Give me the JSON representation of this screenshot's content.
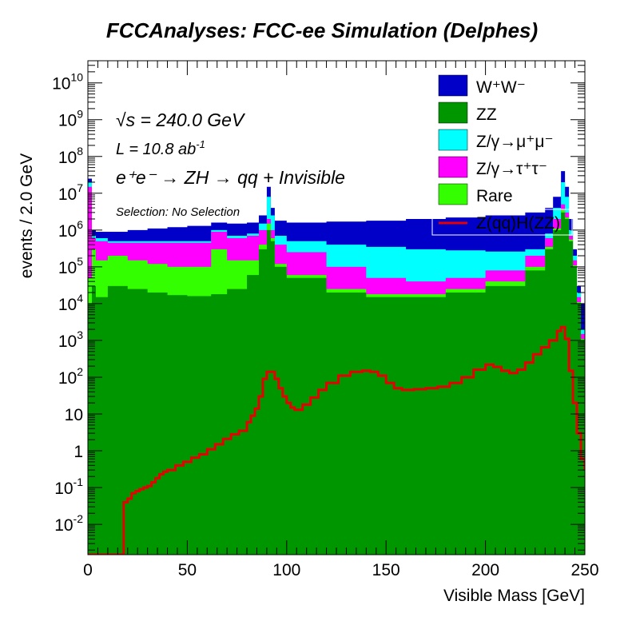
{
  "chart_data": {
    "type": "area",
    "title": "FCCAnalyses: FCC-ee Simulation (Delphes)",
    "xlabel": "Visible Mass [GeV]",
    "ylabel": "events / 2.0 GeV",
    "xlim": [
      0,
      250
    ],
    "ylim": [
      0.0015,
      40000000000
    ],
    "yscale": "log",
    "grid": false,
    "legend_position": "top-right",
    "annotations": {
      "sqrt_s": "√s = 240.0 GeV",
      "lumi": "L = 10.8 ab",
      "lumi_sup": "-1",
      "process": "e⁺e⁻ → ZH → qq + Invisible",
      "selection": "Selection: No Selection"
    },
    "x_ticks": [
      "0",
      "50",
      "100",
      "150",
      "200",
      "250"
    ],
    "y_ticks": [
      {
        "value": 0.01,
        "base": "10",
        "exp": "-2"
      },
      {
        "value": 0.1,
        "base": "10",
        "exp": "-1"
      },
      {
        "value": 1,
        "base": "1",
        "exp": ""
      },
      {
        "value": 10,
        "base": "10",
        "exp": ""
      },
      {
        "value": 100,
        "base": "10",
        "exp": "2"
      },
      {
        "value": 1000,
        "base": "10",
        "exp": "3"
      },
      {
        "value": 10000,
        "base": "10",
        "exp": "4"
      },
      {
        "value": 100000,
        "base": "10",
        "exp": "5"
      },
      {
        "value": 1000000,
        "base": "10",
        "exp": "6"
      },
      {
        "value": 10000000,
        "base": "10",
        "exp": "7"
      },
      {
        "value": 100000000,
        "base": "10",
        "exp": "8"
      },
      {
        "value": 1000000000,
        "base": "10",
        "exp": "9"
      },
      {
        "value": 10000000000,
        "base": "10",
        "exp": "10"
      }
    ],
    "legend": [
      {
        "label": "W⁺W⁻",
        "color": "#0000c8",
        "style": "box"
      },
      {
        "label": "ZZ",
        "color": "#009600",
        "style": "box"
      },
      {
        "label": "Z/γ→μ⁺μ⁻",
        "color": "#00ffff",
        "style": "box"
      },
      {
        "label": "Z/γ→τ⁺τ⁻",
        "color": "#ff00ff",
        "style": "box"
      },
      {
        "label": "Rare",
        "color": "#33ff00",
        "style": "box"
      },
      {
        "label": "Z(qq)H(ZZ)",
        "color": "#e60000",
        "style": "line"
      }
    ],
    "stacked_totals_x": [
      0,
      2,
      4,
      10,
      20,
      30,
      40,
      50,
      60,
      62,
      70,
      80,
      86,
      90,
      92,
      94,
      100,
      120,
      140,
      160,
      180,
      200,
      220,
      230,
      234,
      238,
      240,
      242,
      244,
      246,
      248,
      250
    ],
    "series": [
      {
        "name": "ZZ",
        "color": "#009600",
        "y": [
          10000.0,
          30000.0,
          15000.0,
          30000.0,
          25000.0,
          20000.0,
          17000.0,
          16000.0,
          16000.0,
          18000.0,
          25000.0,
          60000.0,
          300000.0,
          1000000.0,
          500000.0,
          100000.0,
          50000.0,
          20000.0,
          15000.0,
          15000.0,
          20000.0,
          30000.0,
          80000.0,
          300000.0,
          1000000.0,
          3000000.0,
          2000000.0,
          500000.0,
          100000.0,
          10000.0,
          1000.0,
          500.0
        ]
      },
      {
        "name": "Rare",
        "color": "#33ff00",
        "y": [
          50000.0,
          300000.0,
          150000.0,
          200000.0,
          150000.0,
          120000.0,
          100000.0,
          100000.0,
          100000.0,
          300000.0,
          150000.0,
          150000.0,
          400000.0,
          1500000.0,
          600000.0,
          120000.0,
          60000.0,
          25000.0,
          18000.0,
          18000.0,
          25000.0,
          40000.0,
          100000.0,
          350000.0,
          1100000.0,
          3500000.0,
          2200000.0,
          550000.0,
          110000.0,
          11000.0,
          1100.0,
          500.0
        ]
      },
      {
        "name": "Z/γ→τ⁺τ⁻",
        "color": "#ff00ff",
        "y": [
          15000000.0,
          600000.0,
          500000.0,
          450000.0,
          450000.0,
          450000.0,
          450000.0,
          450000.0,
          450000.0,
          900000.0,
          600000.0,
          700000.0,
          1000000.0,
          2000000.0,
          1000000.0,
          400000.0,
          250000.0,
          100000.0,
          50000.0,
          40000.0,
          50000.0,
          80000.0,
          200000.0,
          600000.0,
          2000000.0,
          5000000.0,
          3000000.0,
          700000.0,
          150000.0,
          15000.0,
          1500.0,
          600.0
        ]
      },
      {
        "name": "Z/γ→μ⁺μ⁻",
        "color": "#00ffff",
        "y": [
          20000000.0,
          700000.0,
          600000.0,
          500000.0,
          500000.0,
          500000.0,
          500000.0,
          500000.0,
          500000.0,
          1000000.0,
          700000.0,
          800000.0,
          1500000.0,
          8000000.0,
          2500000.0,
          700000.0,
          500000.0,
          400000.0,
          350000.0,
          300000.0,
          280000.0,
          260000.0,
          300000.0,
          800000.0,
          4000000.0,
          20000000.0,
          8000000.0,
          1000000.0,
          200000.0,
          20000.0,
          2000.0,
          700.0
        ]
      },
      {
        "name": "W⁺W⁻",
        "color": "#0000c8",
        "y": [
          25000000.0,
          1000000.0,
          900000.0,
          900000.0,
          1000000.0,
          1100000.0,
          1200000.0,
          1300000.0,
          1300000.0,
          1600000.0,
          1500000.0,
          1600000.0,
          2500000.0,
          15000000.0,
          4000000.0,
          1800000.0,
          1600000.0,
          1700000.0,
          1800000.0,
          2000000.0,
          2200000.0,
          2500000.0,
          3000000.0,
          4000000.0,
          8000000.0,
          40000000.0,
          15000000.0,
          2000000.0,
          300000.0,
          30000.0,
          10000.0,
          3000.0
        ]
      }
    ],
    "signal": {
      "name": "Z(qq)H(ZZ)",
      "color": "#e60000",
      "x": [
        0,
        16,
        18,
        20,
        22,
        24,
        26,
        28,
        30,
        32,
        34,
        36,
        38,
        40,
        44,
        48,
        52,
        56,
        60,
        64,
        68,
        72,
        76,
        80,
        82,
        84,
        86,
        88,
        90,
        92,
        94,
        96,
        98,
        100,
        102,
        104,
        108,
        112,
        116,
        120,
        126,
        132,
        138,
        142,
        146,
        150,
        154,
        158,
        164,
        170,
        176,
        182,
        188,
        194,
        200,
        204,
        208,
        212,
        216,
        220,
        224,
        228,
        232,
        236,
        238,
        240,
        242,
        244,
        246,
        248,
        250
      ],
      "y": [
        0.0015,
        0.0015,
        0.04,
        0.05,
        0.07,
        0.08,
        0.09,
        0.1,
        0.11,
        0.14,
        0.18,
        0.23,
        0.27,
        0.3,
        0.4,
        0.5,
        0.65,
        0.8,
        1.1,
        1.5,
        2.1,
        2.8,
        3.5,
        6,
        9,
        14,
        30,
        90,
        140,
        140,
        90,
        50,
        30,
        20,
        15,
        13,
        18,
        28,
        45,
        70,
        110,
        140,
        150,
        140,
        110,
        70,
        50,
        45,
        47,
        50,
        55,
        70,
        100,
        160,
        220,
        190,
        150,
        130,
        160,
        250,
        420,
        650,
        1000,
        1800,
        2300,
        1100,
        150,
        20,
        3,
        0.6,
        0.3
      ]
    }
  }
}
